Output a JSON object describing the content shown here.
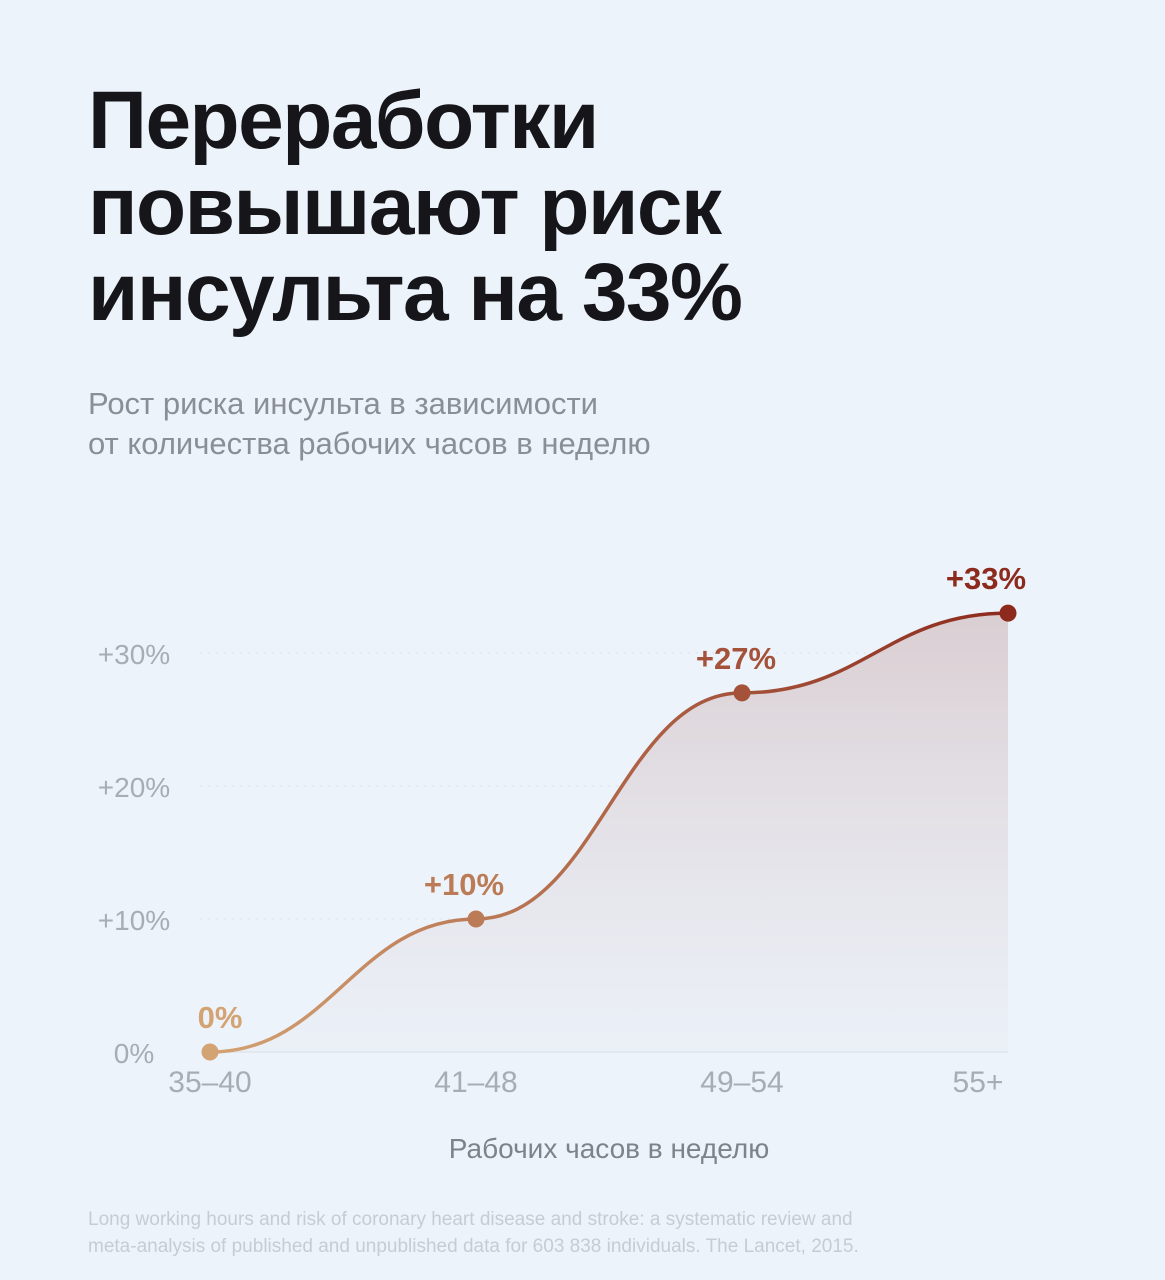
{
  "title": {
    "lines": [
      "Переработки",
      "повышают риск",
      "инсульта на 33%"
    ]
  },
  "subtitle": {
    "lines": [
      "Рост риска инсульта в зависимости",
      "от количества рабочих часов в неделю"
    ]
  },
  "chart_data": {
    "type": "line",
    "categories": [
      "35–40",
      "41–48",
      "49–54",
      "55+"
    ],
    "values": [
      0,
      10,
      27,
      33
    ],
    "data_labels": [
      "0%",
      "+10%",
      "+27%",
      "+33%"
    ],
    "y_ticks": [
      0,
      10,
      20,
      30
    ],
    "y_tick_labels": [
      "0%",
      "+10%",
      "+20%",
      "+30%"
    ],
    "ylim": [
      0,
      33
    ],
    "xlabel": "Рабочих часов в неделю",
    "ylabel": "",
    "grid": true,
    "legend": "none",
    "colors": {
      "start": "#d4a374",
      "end": "#8c2a1d",
      "area_top": "#d9ccd0",
      "area_bottom": "#eaeef5",
      "tick_text": "#a7adb5",
      "axis_label": "#7d838b",
      "grid": "#dde2e9"
    }
  },
  "footnote": {
    "lines": [
      "Long working hours and risk of coronary heart disease and stroke: a systematic review and",
      "meta-analysis of published and unpublished data for 603 838 individuals. The Lancet, 2015."
    ]
  }
}
